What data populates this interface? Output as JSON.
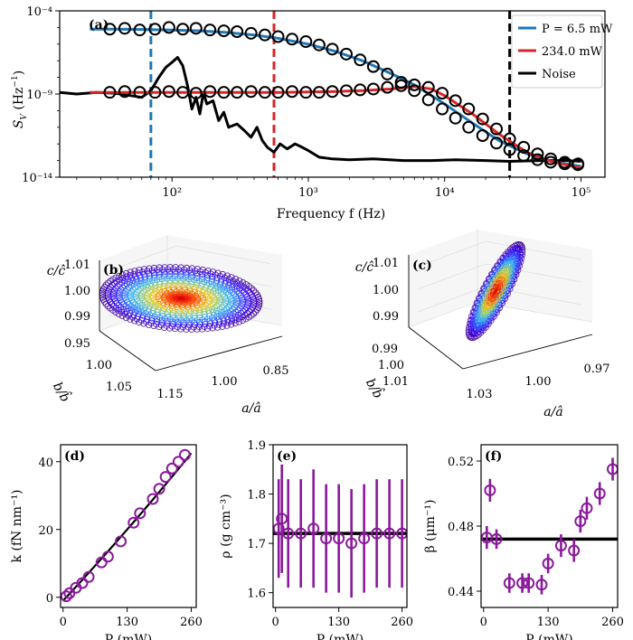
{
  "chart_data": [
    {
      "id": "a",
      "type": "line",
      "panel_label": "(a)",
      "xscale": "log",
      "yscale": "log",
      "xlabel": "Frequency $f$ (Hz)",
      "xlabel_text": "Frequency f (Hz)",
      "ylabel_text": "S_V (Hz^-1)",
      "xlim": [
        15,
        150000
      ],
      "ylim_exp": [
        -14,
        -4
      ],
      "x_tick_exponents": [
        2,
        3,
        4,
        5
      ],
      "x_tick_labels": [
        "10²",
        "10³",
        "10⁴",
        "10⁵"
      ],
      "y_tick_exponents": [
        -14,
        -9,
        -4
      ],
      "y_tick_labels": [
        "10⁻¹⁴",
        "10⁻⁹",
        "10⁻⁴"
      ],
      "vlines": [
        {
          "x": 70,
          "color": "#1f77b4",
          "style": "dashed"
        },
        {
          "x": 560,
          "color": "#d62728",
          "style": "dashed"
        },
        {
          "x": 30000,
          "color": "#000000",
          "style": "dashed"
        }
      ],
      "legend": [
        {
          "label": "P = 6.5 mW",
          "color": "#1f77b4"
        },
        {
          "label": "234.0 mW",
          "color": "#d62728"
        },
        {
          "label": "Noise",
          "color": "#000000"
        }
      ],
      "series": [
        {
          "name": "P = 6.5 mW data",
          "marker": "circle",
          "x": [
            35,
            45,
            58,
            75,
            95,
            120,
            150,
            190,
            240,
            300,
            380,
            480,
            600,
            760,
            960,
            1200,
            1500,
            1900,
            2400,
            3000,
            3800,
            4800,
            6000,
            7600,
            9600,
            12000,
            15000,
            19000,
            24000,
            30000,
            38000,
            48000,
            60000,
            76000,
            95000
          ],
          "logy": [
            -5.1,
            -5.05,
            -5.15,
            -5.1,
            -5.0,
            -5.1,
            -5.05,
            -5.15,
            -5.2,
            -5.25,
            -5.35,
            -5.45,
            -5.55,
            -5.7,
            -5.85,
            -6.05,
            -6.3,
            -6.6,
            -6.95,
            -7.35,
            -7.8,
            -8.3,
            -8.8,
            -9.35,
            -9.9,
            -10.45,
            -11.0,
            -11.5,
            -11.95,
            -12.35,
            -12.7,
            -12.95,
            -13.1,
            -13.2,
            -13.25
          ]
        },
        {
          "name": "P = 6.5 mW fit",
          "line": true,
          "x": [
            25,
            40,
            60,
            100,
            160,
            250,
            400,
            600,
            1000,
            1600,
            2500,
            4000,
            6000,
            10000,
            16000,
            25000,
            40000,
            60000,
            100000
          ],
          "logy": [
            -5.1,
            -5.1,
            -5.12,
            -5.15,
            -5.2,
            -5.3,
            -5.45,
            -5.65,
            -6.0,
            -6.45,
            -7.0,
            -7.75,
            -8.45,
            -9.6,
            -10.75,
            -11.8,
            -12.6,
            -13.05,
            -13.35
          ]
        },
        {
          "name": "234.0 mW data",
          "marker": "circle",
          "x": [
            35,
            45,
            58,
            75,
            95,
            120,
            150,
            190,
            240,
            300,
            380,
            480,
            600,
            760,
            960,
            1200,
            1500,
            1900,
            2400,
            3000,
            3800,
            4800,
            6000,
            7600,
            9600,
            12000,
            15000,
            19000,
            24000,
            30000,
            38000,
            48000,
            60000,
            76000,
            95000
          ],
          "logy": [
            -8.9,
            -8.85,
            -8.9,
            -8.9,
            -8.85,
            -8.9,
            -8.95,
            -8.85,
            -8.9,
            -8.9,
            -8.85,
            -8.9,
            -8.9,
            -8.85,
            -8.9,
            -8.9,
            -8.85,
            -8.8,
            -8.75,
            -8.7,
            -8.6,
            -8.5,
            -8.45,
            -8.6,
            -8.95,
            -9.4,
            -9.9,
            -10.5,
            -11.1,
            -11.7,
            -12.2,
            -12.6,
            -12.9,
            -13.1,
            -13.2
          ]
        },
        {
          "name": "234.0 mW fit",
          "line": true,
          "x": [
            25,
            40,
            60,
            100,
            160,
            250,
            400,
            600,
            1000,
            1600,
            2500,
            4000,
            6000,
            8000,
            10000,
            16000,
            25000,
            40000,
            60000,
            100000
          ],
          "logy": [
            -8.9,
            -8.9,
            -8.9,
            -8.9,
            -8.9,
            -8.9,
            -8.9,
            -8.9,
            -8.88,
            -8.85,
            -8.8,
            -8.7,
            -8.55,
            -8.7,
            -9.1,
            -10.2,
            -11.4,
            -12.5,
            -13.05,
            -13.45
          ]
        },
        {
          "name": "Noise",
          "line": true,
          "x": [
            15,
            20,
            28,
            38,
            50,
            60,
            70,
            80,
            90,
            100,
            110,
            120,
            130,
            140,
            150,
            160,
            170,
            180,
            200,
            220,
            240,
            260,
            300,
            340,
            380,
            420,
            460,
            500,
            560,
            620,
            700,
            800,
            900,
            1000,
            1200,
            1500,
            2000,
            3000,
            5000,
            8000,
            12000,
            20000,
            30000,
            50000,
            80000,
            100000
          ],
          "logy": [
            -8.9,
            -9.0,
            -8.9,
            -8.95,
            -9.1,
            -9.2,
            -8.8,
            -8.0,
            -7.4,
            -7.1,
            -6.8,
            -7.3,
            -8.5,
            -9.9,
            -9.2,
            -10.2,
            -8.9,
            -9.6,
            -9.4,
            -10.6,
            -10.1,
            -11.0,
            -10.8,
            -11.2,
            -11.6,
            -11.0,
            -11.8,
            -12.2,
            -12.5,
            -12.0,
            -12.3,
            -12.0,
            -12.2,
            -12.4,
            -12.8,
            -12.9,
            -12.95,
            -12.9,
            -13.0,
            -13.0,
            -12.95,
            -13.0,
            -13.05,
            -13.0,
            -13.0,
            -13.05
          ]
        }
      ]
    },
    {
      "id": "b",
      "type": "scatter3d",
      "panel_label": "(b)",
      "z_label": "c/ĉ",
      "y_label": "b/b̂",
      "x_label": "a/â",
      "z_ticks": [
        "1.01",
        "1.00",
        "0.99"
      ],
      "y_ticks": [
        "0.95",
        "1.00",
        "1.05"
      ],
      "x_ticks": [
        "1.15",
        "1.00",
        "0.85"
      ],
      "shape": "flat wide disk"
    },
    {
      "id": "c",
      "type": "scatter3d",
      "panel_label": "(c)",
      "z_label": "c/ĉ",
      "y_label": "b/b̂",
      "x_label": "a/â",
      "z_ticks": [
        "1.01",
        "1.00",
        "0.99"
      ],
      "y_ticks": [
        "0.99",
        "1.00",
        "1.01"
      ],
      "x_ticks": [
        "1.03",
        "1.00",
        "0.97"
      ],
      "shape": "tilted narrow ellipse"
    },
    {
      "id": "d",
      "type": "scatter",
      "panel_label": "(d)",
      "xlabel": "P (mW)",
      "ylabel": "k (fN nm⁻¹)",
      "xlim": [
        -5,
        270
      ],
      "ylim": [
        -3,
        45
      ],
      "xticks": [
        0,
        130,
        260
      ],
      "yticks": [
        0,
        20,
        40
      ],
      "x": [
        6.5,
        13,
        26,
        39,
        52,
        78,
        91,
        117,
        143,
        156,
        182,
        195,
        208,
        221,
        234,
        247
      ],
      "y": [
        0.3,
        1.2,
        2.8,
        4.2,
        6.0,
        10.3,
        12.0,
        16.5,
        22.0,
        24.8,
        29.0,
        32.0,
        35.5,
        38.0,
        40.0,
        42.0
      ],
      "fit": {
        "x": [
          0,
          260
        ],
        "y": [
          -1.0,
          42.5
        ],
        "curvature": 0.25
      }
    },
    {
      "id": "e",
      "type": "scatter",
      "panel_label": "(e)",
      "xlabel": "P (mW)",
      "ylabel": "ρ (g cm⁻³)",
      "xlim": [
        -5,
        270
      ],
      "ylim": [
        1.57,
        1.9
      ],
      "xticks": [
        0,
        130,
        260
      ],
      "yticks": [
        1.6,
        1.7,
        1.8,
        1.9
      ],
      "x": [
        6.5,
        13,
        26,
        52,
        78,
        104,
        130,
        156,
        182,
        208,
        234,
        260
      ],
      "y": [
        1.73,
        1.75,
        1.72,
        1.72,
        1.73,
        1.71,
        1.71,
        1.7,
        1.71,
        1.72,
        1.72,
        1.72
      ],
      "err": [
        0.1,
        0.11,
        0.11,
        0.11,
        0.12,
        0.11,
        0.11,
        0.11,
        0.11,
        0.11,
        0.11,
        0.11
      ],
      "hline": 1.72
    },
    {
      "id": "f",
      "type": "scatter",
      "panel_label": "(f)",
      "xlabel": "P (mW)",
      "ylabel": "β (μm⁻¹)",
      "xlim": [
        -5,
        270
      ],
      "ylim": [
        0.43,
        0.53
      ],
      "xticks": [
        0,
        130,
        260
      ],
      "yticks": [
        0.44,
        0.48,
        0.52
      ],
      "x": [
        6.5,
        13,
        26,
        52,
        78,
        91,
        117,
        130,
        156,
        182,
        195,
        208,
        234,
        260
      ],
      "y": [
        0.473,
        0.502,
        0.472,
        0.445,
        0.445,
        0.445,
        0.444,
        0.457,
        0.468,
        0.465,
        0.483,
        0.491,
        0.5,
        0.515
      ],
      "err": [
        0.007,
        0.007,
        0.006,
        0.006,
        0.006,
        0.006,
        0.006,
        0.006,
        0.007,
        0.007,
        0.007,
        0.007,
        0.007,
        0.007
      ],
      "hline": 0.472
    }
  ]
}
